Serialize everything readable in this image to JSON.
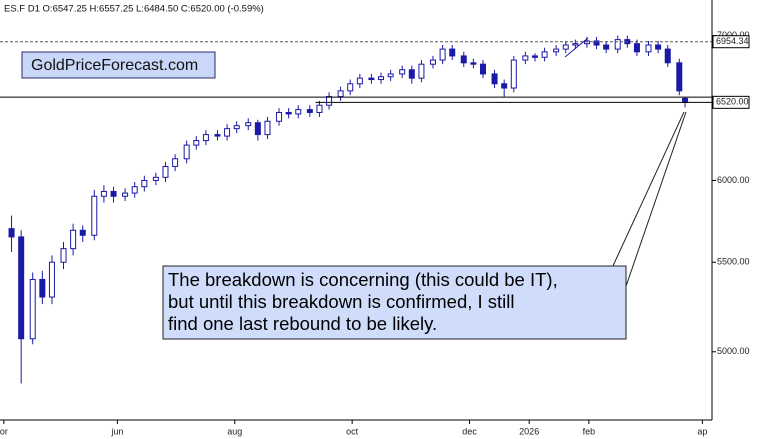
{
  "header": "ES.F  D1  O:6547.25 H:6557.25 L:6484.50 C:6520.00 (-0.59%)",
  "watermark": "GoldPriceForecast.com",
  "annotation": [
    "The breakdown is concerning (this could be IT),",
    "but until this breakdown is confirmed, I still",
    "find one last rebound to be likely."
  ],
  "chart_data": {
    "type": "candlestick",
    "log_scale": true,
    "color_up": "#ffffff",
    "color_down": "#1a1aa6",
    "color_outline": "#1a1aa6",
    "x": [
      6,
      11,
      17,
      22,
      27,
      33,
      38,
      43,
      49,
      54,
      59,
      65,
      70,
      75,
      81,
      86,
      91,
      97,
      102,
      107,
      113,
      118,
      123,
      129,
      134,
      139,
      145,
      150,
      155,
      161,
      166,
      171,
      177,
      182,
      187,
      193,
      198,
      203,
      209,
      214,
      219,
      225,
      230,
      235,
      241,
      246,
      251,
      257,
      262,
      267,
      273,
      278,
      283,
      289,
      294,
      299,
      305,
      310,
      315,
      321,
      326,
      331,
      337,
      342,
      347,
      353,
      356
    ],
    "open": [
      5700,
      5650,
      5070,
      5400,
      5300,
      5500,
      5580,
      5690,
      5660,
      5900,
      5930,
      5900,
      5920,
      5960,
      6000,
      6020,
      6090,
      6140,
      6230,
      6260,
      6300,
      6290,
      6340,
      6360,
      6380,
      6300,
      6390,
      6450,
      6440,
      6470,
      6450,
      6500,
      6560,
      6600,
      6650,
      6690,
      6680,
      6700,
      6720,
      6750,
      6690,
      6790,
      6820,
      6900,
      6850,
      6800,
      6790,
      6720,
      6650,
      6620,
      6820,
      6850,
      6840,
      6880,
      6900,
      6930,
      6940,
      6960,
      6930,
      6900,
      6970,
      6940,
      6880,
      6930,
      6900,
      6800,
      6547.25
    ],
    "high": [
      5780,
      5690,
      5440,
      5450,
      5540,
      5620,
      5730,
      5720,
      5940,
      5970,
      5960,
      5950,
      5990,
      6030,
      6050,
      6120,
      6170,
      6260,
      6290,
      6330,
      6330,
      6370,
      6390,
      6410,
      6400,
      6420,
      6480,
      6480,
      6500,
      6500,
      6530,
      6590,
      6630,
      6680,
      6720,
      6720,
      6730,
      6750,
      6780,
      6780,
      6820,
      6850,
      6930,
      6930,
      6880,
      6830,
      6820,
      6750,
      6680,
      6850,
      6880,
      6870,
      6910,
      6930,
      6960,
      6970,
      6990,
      6990,
      6960,
      7000,
      7000,
      6970,
      6960,
      6960,
      6930,
      6830,
      6557.25
    ],
    "low": [
      5560,
      4835,
      5040,
      5260,
      5260,
      5460,
      5540,
      5620,
      5630,
      5860,
      5860,
      5870,
      5890,
      5930,
      5970,
      5990,
      6060,
      6110,
      6200,
      6230,
      6260,
      6260,
      6310,
      6330,
      6260,
      6270,
      6360,
      6410,
      6410,
      6420,
      6420,
      6470,
      6530,
      6570,
      6620,
      6650,
      6650,
      6670,
      6690,
      6650,
      6660,
      6760,
      6790,
      6820,
      6770,
      6760,
      6690,
      6620,
      6560,
      6590,
      6790,
      6810,
      6810,
      6850,
      6870,
      6900,
      6910,
      6900,
      6870,
      6870,
      6910,
      6850,
      6850,
      6870,
      6770,
      6570,
      6484.5
    ],
    "close": [
      5650,
      5070,
      5400,
      5300,
      5500,
      5580,
      5690,
      5660,
      5900,
      5930,
      5900,
      5920,
      5960,
      6000,
      6020,
      6090,
      6140,
      6230,
      6260,
      6300,
      6290,
      6340,
      6360,
      6380,
      6300,
      6390,
      6450,
      6440,
      6470,
      6450,
      6500,
      6560,
      6600,
      6650,
      6690,
      6680,
      6700,
      6720,
      6750,
      6690,
      6790,
      6820,
      6900,
      6850,
      6800,
      6790,
      6720,
      6650,
      6620,
      6820,
      6850,
      6840,
      6880,
      6900,
      6930,
      6940,
      6960,
      6930,
      6900,
      6970,
      6940,
      6880,
      6930,
      6900,
      6800,
      6600,
      6520
    ],
    "xlim": [
      0,
      370
    ],
    "xticks": [
      {
        "value": 2,
        "label": "or"
      },
      {
        "value": 61,
        "label": "jun"
      },
      {
        "value": 122,
        "label": "aug"
      },
      {
        "value": 183,
        "label": "oct"
      },
      {
        "value": 244,
        "label": "dec"
      },
      {
        "value": 275,
        "label": "2026"
      },
      {
        "value": 306,
        "label": "feb"
      },
      {
        "value": 365,
        "label": "ap"
      }
    ],
    "ylim": [
      4650,
      7270
    ],
    "yticks": [
      {
        "value": 5000,
        "label": "5000.00"
      },
      {
        "value": 5500,
        "label": "5500.00"
      },
      {
        "value": 6000,
        "label": "6000.00"
      },
      {
        "value": 7000,
        "label": "7000.00"
      }
    ],
    "price_lines": [
      {
        "value": 6954.34,
        "label": "6954.34",
        "style": "dashed"
      },
      {
        "value": 6556,
        "style": "solid"
      },
      {
        "value": 6520,
        "label": "6520.00",
        "style": "solid",
        "from_x": 164
      }
    ]
  }
}
